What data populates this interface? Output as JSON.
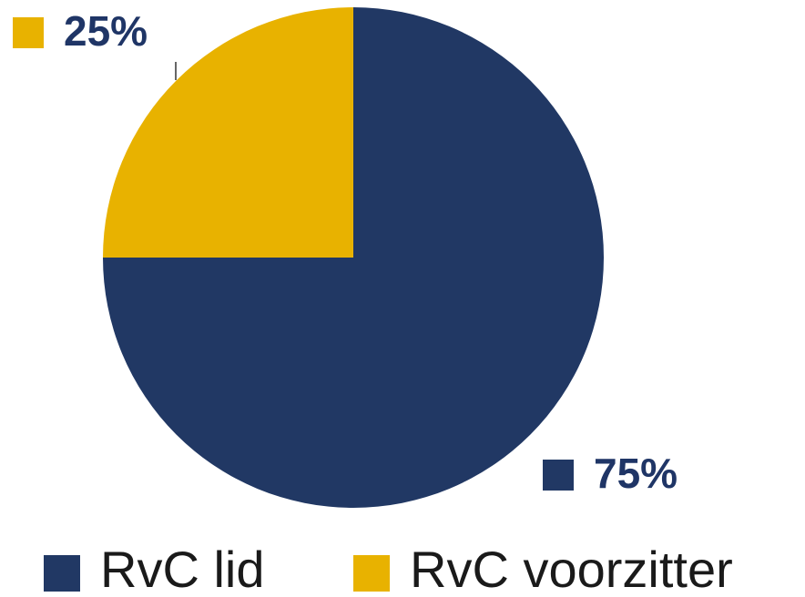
{
  "chart_data": {
    "type": "pie",
    "categories": [
      "RvC lid",
      "RvC voorzitter"
    ],
    "values": [
      75,
      25
    ],
    "value_labels": [
      "75%",
      "25%"
    ],
    "colors": [
      "#213864",
      "#e8b200"
    ],
    "legend": "bottom"
  }
}
